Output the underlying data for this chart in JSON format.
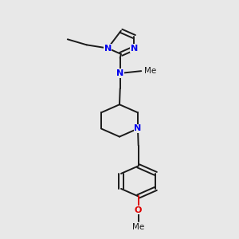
{
  "background_color": "#e8e8e8",
  "bond_color": "#1a1a1a",
  "n_color": "#0000ee",
  "o_color": "#dd0000",
  "bond_width": 1.4,
  "dbo": 0.008,
  "fig_width": 3.0,
  "fig_height": 3.0,
  "dpi": 100,
  "xlim": [
    0.1,
    0.9
  ],
  "ylim": [
    0.0,
    1.05
  ]
}
